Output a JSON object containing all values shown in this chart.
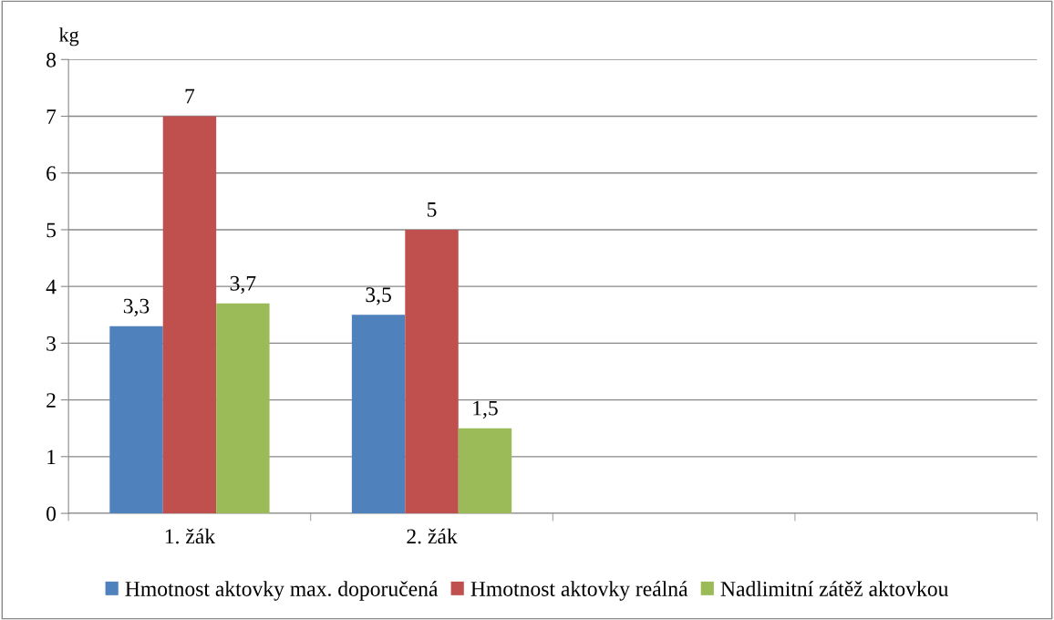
{
  "chart_data": {
    "type": "bar",
    "ylabel": "kg",
    "categories": [
      "1. žák",
      "2. žák",
      null,
      null
    ],
    "series": [
      {
        "name": "Hmotnost aktovky max. doporučená",
        "color": "#4f81bd",
        "values": [
          3.3,
          3.5,
          null,
          null
        ],
        "value_labels": [
          "3,3",
          "3,5",
          null,
          null
        ]
      },
      {
        "name": "Hmotnost aktovky reálná",
        "color": "#c0504d",
        "values": [
          7,
          5,
          null,
          null
        ],
        "value_labels": [
          "7",
          "5",
          null,
          null
        ]
      },
      {
        "name": "Nadlimitní zátěž aktovkou",
        "color": "#9bbb59",
        "values": [
          3.7,
          1.5,
          null,
          null
        ],
        "value_labels": [
          "3,7",
          "1,5",
          null,
          null
        ]
      }
    ],
    "ylim": [
      0,
      8
    ],
    "yticks": [
      0,
      1,
      2,
      3,
      4,
      5,
      6,
      7,
      8
    ],
    "grid": "y",
    "legend": "bottom"
  }
}
